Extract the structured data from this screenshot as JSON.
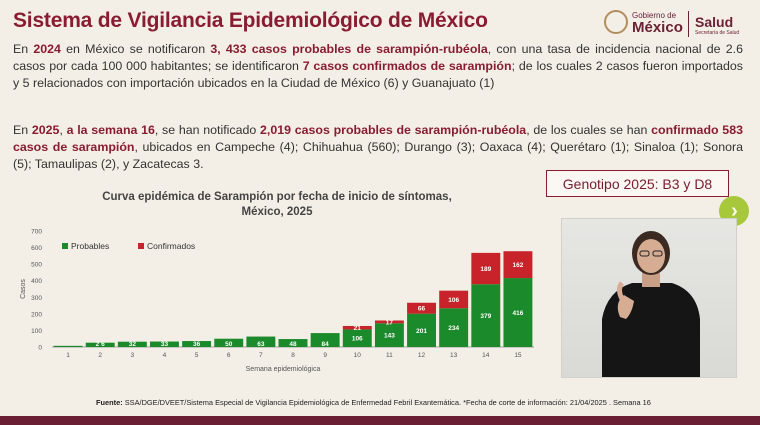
{
  "header": {
    "title": "Sistema de Vigilancia Epidemiológico de México",
    "logo": {
      "gobierno": "Gobierno de",
      "mexico": "México",
      "salud": "Salud",
      "sub": "Secretaría de Salud"
    }
  },
  "paragraph_2024": [
    {
      "t": "En "
    },
    {
      "t": "2024",
      "b": true
    },
    {
      "t": " en México se notificaron "
    },
    {
      "t": "3, 433 casos probables de sarampión-rubéola",
      "b": true
    },
    {
      "t": ", con una tasa de incidencia nacional de 2.6 casos por cada 100 000 habitantes; se identificaron "
    },
    {
      "t": "7 casos confirmados de sarampión",
      "b": true
    },
    {
      "t": "; de los cuales 2 casos fueron importados y 5 relacionados con importación ubicados en la Ciudad de México (6) y Guanajuato (1)"
    }
  ],
  "paragraph_2025": [
    {
      "t": "En "
    },
    {
      "t": "2025",
      "b": true
    },
    {
      "t": ", "
    },
    {
      "t": "a la semana 16",
      "b": true
    },
    {
      "t": ", se han notificado  "
    },
    {
      "t": "2,019 casos probables de sarampión-rubéola",
      "b": true
    },
    {
      "t": ", de los cuales se han "
    },
    {
      "t": "confirmado 583 casos de sarampión",
      "b": true
    },
    {
      "t": ", ubicados en Campeche (4); Chihuahua (560); Durango (3); Oaxaca (4); Querétaro (1); Sinaloa (1); Sonora (5); Tamaulipas (2), y Zacatecas 3."
    }
  ],
  "genotype_label": "Genotipo 2025: B3 y D8",
  "next_icon": "chevron-right-icon",
  "video": {
    "description": "sign-language-interpreter"
  },
  "footnote": {
    "source_label": "Fuente:",
    "source_text": " SSA/DGE/DVEET/Sistema Especial de Vigilancia Epidemiológica de Enfermedad Febril Exantemática.  *Fecha de corte de información: 21/04/2025 . Semana 16"
  },
  "colors": {
    "title": "#8a1c32",
    "probables": "#1b8a2a",
    "confirmados": "#c8232b",
    "accent": "#a7c83a",
    "footer": "#6b1f34"
  },
  "chart_data": {
    "type": "bar",
    "stacked": true,
    "title_line1": "Curva epidémica de Sarampión por fecha de inicio de síntomas,",
    "title_line2": "México, 2025",
    "xlabel": "Semana epidemiológica",
    "ylabel": "Casos",
    "ylim": [
      0,
      700
    ],
    "yticks": [
      0,
      100,
      200,
      300,
      400,
      500,
      600,
      700
    ],
    "legend_position": "top-left",
    "categories": [
      "1",
      "2",
      "3",
      "4",
      "5",
      "6",
      "7",
      "8",
      "9",
      "10",
      "11",
      "12",
      "13",
      "14",
      "15"
    ],
    "series": [
      {
        "name": "Probables",
        "color": "#1b8a2a",
        "values": [
          7,
          26,
          32,
          33,
          36,
          50,
          63,
          48,
          84,
          106,
          143,
          201,
          234,
          379,
          416
        ],
        "labels": [
          "",
          "2 6",
          "32",
          "33",
          "36",
          "50",
          "63",
          "48",
          "84",
          "106",
          "143",
          "201",
          "234",
          "379",
          "416"
        ]
      },
      {
        "name": "Confirmados",
        "color": "#c8232b",
        "values": [
          0,
          0,
          0,
          0,
          0,
          0,
          0,
          0,
          0,
          21,
          17,
          66,
          106,
          189,
          162
        ],
        "labels": [
          "",
          "",
          "",
          "",
          "",
          "",
          "",
          "",
          "",
          "21",
          "17",
          "66",
          "106",
          "189",
          "162"
        ]
      }
    ]
  }
}
